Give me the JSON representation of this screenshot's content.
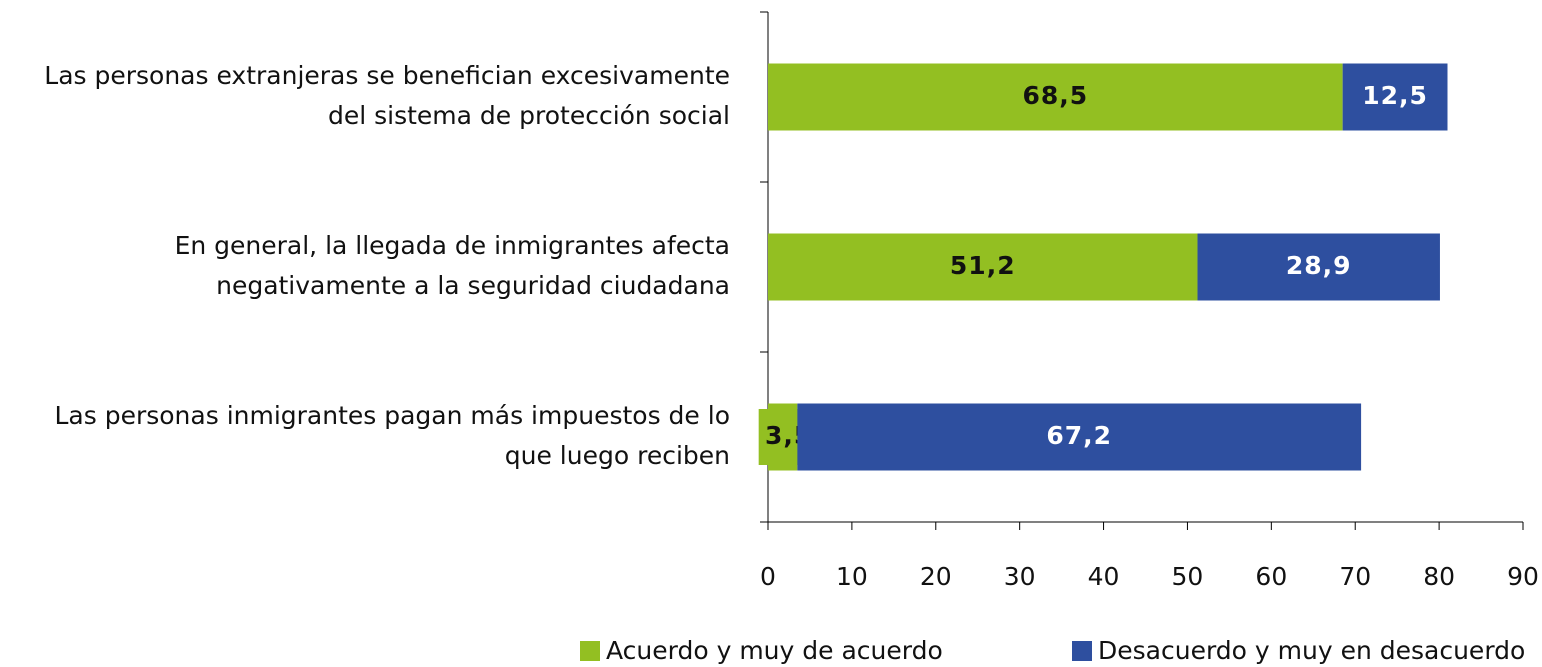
{
  "chart_data": {
    "type": "stacked_barh",
    "categories": [
      [
        "Las personas extranjeras se benefician excesivamente",
        "del sistema de protección social"
      ],
      [
        "En general, la llegada de inmigrantes afecta",
        "negativamente a la seguridad ciudadana"
      ],
      [
        "Las personas inmigrantes pagan más impuestos de lo",
        "que luego reciben"
      ]
    ],
    "series": [
      {
        "name": "Acuerdo y muy de acuerdo",
        "color": "#93bf22",
        "values": [
          68.5,
          51.2,
          3.5
        ],
        "value_labels": [
          "68,5",
          "51,2",
          "3,5"
        ]
      },
      {
        "name": "Desacuerdo y muy en desacuerdo",
        "color": "#2e4f9f",
        "values": [
          12.5,
          28.9,
          67.2
        ],
        "value_labels": [
          "12,5",
          "28,9",
          "67,2"
        ]
      }
    ],
    "xlim": [
      0,
      90
    ],
    "xticks": [
      0,
      10,
      20,
      30,
      40,
      50,
      60,
      70,
      80,
      90
    ]
  }
}
